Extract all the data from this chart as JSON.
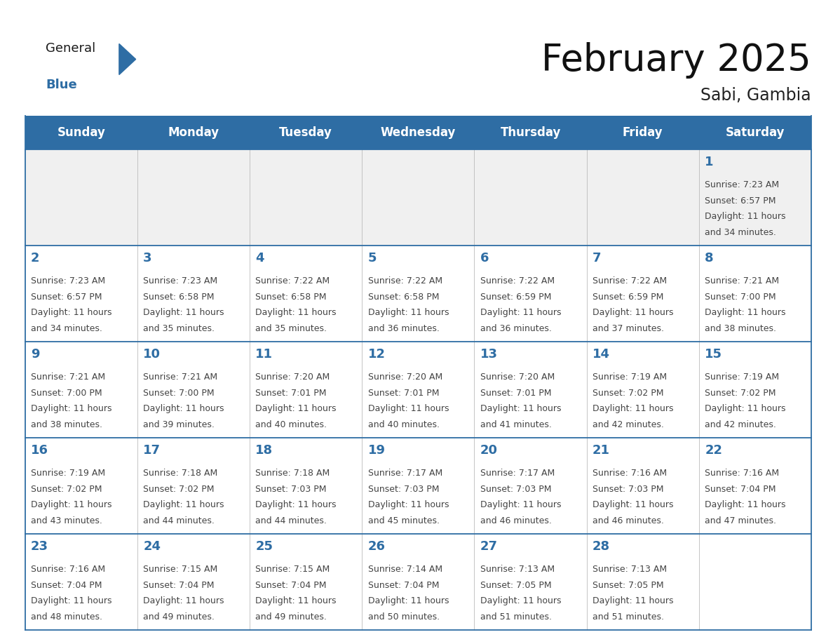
{
  "title": "February 2025",
  "location": "Sabi, Gambia",
  "header_bg": "#2E6DA4",
  "header_text": "#FFFFFF",
  "cell_bg": "#FFFFFF",
  "day_number_color": "#2E6DA4",
  "cell_text_color": "#444444",
  "border_color": "#2E6DA4",
  "row_sep_color": "#2E6DA4",
  "col_sep_color": "#BBBBBB",
  "days_of_week": [
    "Sunday",
    "Monday",
    "Tuesday",
    "Wednesday",
    "Thursday",
    "Friday",
    "Saturday"
  ],
  "weeks": [
    [
      {
        "day": null,
        "sunrise": null,
        "sunset": null,
        "daylight_line1": null,
        "daylight_line2": null
      },
      {
        "day": null,
        "sunrise": null,
        "sunset": null,
        "daylight_line1": null,
        "daylight_line2": null
      },
      {
        "day": null,
        "sunrise": null,
        "sunset": null,
        "daylight_line1": null,
        "daylight_line2": null
      },
      {
        "day": null,
        "sunrise": null,
        "sunset": null,
        "daylight_line1": null,
        "daylight_line2": null
      },
      {
        "day": null,
        "sunrise": null,
        "sunset": null,
        "daylight_line1": null,
        "daylight_line2": null
      },
      {
        "day": null,
        "sunrise": null,
        "sunset": null,
        "daylight_line1": null,
        "daylight_line2": null
      },
      {
        "day": 1,
        "sunrise": "7:23 AM",
        "sunset": "6:57 PM",
        "daylight_line1": "Daylight: 11 hours",
        "daylight_line2": "and 34 minutes."
      }
    ],
    [
      {
        "day": 2,
        "sunrise": "7:23 AM",
        "sunset": "6:57 PM",
        "daylight_line1": "Daylight: 11 hours",
        "daylight_line2": "and 34 minutes."
      },
      {
        "day": 3,
        "sunrise": "7:23 AM",
        "sunset": "6:58 PM",
        "daylight_line1": "Daylight: 11 hours",
        "daylight_line2": "and 35 minutes."
      },
      {
        "day": 4,
        "sunrise": "7:22 AM",
        "sunset": "6:58 PM",
        "daylight_line1": "Daylight: 11 hours",
        "daylight_line2": "and 35 minutes."
      },
      {
        "day": 5,
        "sunrise": "7:22 AM",
        "sunset": "6:58 PM",
        "daylight_line1": "Daylight: 11 hours",
        "daylight_line2": "and 36 minutes."
      },
      {
        "day": 6,
        "sunrise": "7:22 AM",
        "sunset": "6:59 PM",
        "daylight_line1": "Daylight: 11 hours",
        "daylight_line2": "and 36 minutes."
      },
      {
        "day": 7,
        "sunrise": "7:22 AM",
        "sunset": "6:59 PM",
        "daylight_line1": "Daylight: 11 hours",
        "daylight_line2": "and 37 minutes."
      },
      {
        "day": 8,
        "sunrise": "7:21 AM",
        "sunset": "7:00 PM",
        "daylight_line1": "Daylight: 11 hours",
        "daylight_line2": "and 38 minutes."
      }
    ],
    [
      {
        "day": 9,
        "sunrise": "7:21 AM",
        "sunset": "7:00 PM",
        "daylight_line1": "Daylight: 11 hours",
        "daylight_line2": "and 38 minutes."
      },
      {
        "day": 10,
        "sunrise": "7:21 AM",
        "sunset": "7:00 PM",
        "daylight_line1": "Daylight: 11 hours",
        "daylight_line2": "and 39 minutes."
      },
      {
        "day": 11,
        "sunrise": "7:20 AM",
        "sunset": "7:01 PM",
        "daylight_line1": "Daylight: 11 hours",
        "daylight_line2": "and 40 minutes."
      },
      {
        "day": 12,
        "sunrise": "7:20 AM",
        "sunset": "7:01 PM",
        "daylight_line1": "Daylight: 11 hours",
        "daylight_line2": "and 40 minutes."
      },
      {
        "day": 13,
        "sunrise": "7:20 AM",
        "sunset": "7:01 PM",
        "daylight_line1": "Daylight: 11 hours",
        "daylight_line2": "and 41 minutes."
      },
      {
        "day": 14,
        "sunrise": "7:19 AM",
        "sunset": "7:02 PM",
        "daylight_line1": "Daylight: 11 hours",
        "daylight_line2": "and 42 minutes."
      },
      {
        "day": 15,
        "sunrise": "7:19 AM",
        "sunset": "7:02 PM",
        "daylight_line1": "Daylight: 11 hours",
        "daylight_line2": "and 42 minutes."
      }
    ],
    [
      {
        "day": 16,
        "sunrise": "7:19 AM",
        "sunset": "7:02 PM",
        "daylight_line1": "Daylight: 11 hours",
        "daylight_line2": "and 43 minutes."
      },
      {
        "day": 17,
        "sunrise": "7:18 AM",
        "sunset": "7:02 PM",
        "daylight_line1": "Daylight: 11 hours",
        "daylight_line2": "and 44 minutes."
      },
      {
        "day": 18,
        "sunrise": "7:18 AM",
        "sunset": "7:03 PM",
        "daylight_line1": "Daylight: 11 hours",
        "daylight_line2": "and 44 minutes."
      },
      {
        "day": 19,
        "sunrise": "7:17 AM",
        "sunset": "7:03 PM",
        "daylight_line1": "Daylight: 11 hours",
        "daylight_line2": "and 45 minutes."
      },
      {
        "day": 20,
        "sunrise": "7:17 AM",
        "sunset": "7:03 PM",
        "daylight_line1": "Daylight: 11 hours",
        "daylight_line2": "and 46 minutes."
      },
      {
        "day": 21,
        "sunrise": "7:16 AM",
        "sunset": "7:03 PM",
        "daylight_line1": "Daylight: 11 hours",
        "daylight_line2": "and 46 minutes."
      },
      {
        "day": 22,
        "sunrise": "7:16 AM",
        "sunset": "7:04 PM",
        "daylight_line1": "Daylight: 11 hours",
        "daylight_line2": "and 47 minutes."
      }
    ],
    [
      {
        "day": 23,
        "sunrise": "7:16 AM",
        "sunset": "7:04 PM",
        "daylight_line1": "Daylight: 11 hours",
        "daylight_line2": "and 48 minutes."
      },
      {
        "day": 24,
        "sunrise": "7:15 AM",
        "sunset": "7:04 PM",
        "daylight_line1": "Daylight: 11 hours",
        "daylight_line2": "and 49 minutes."
      },
      {
        "day": 25,
        "sunrise": "7:15 AM",
        "sunset": "7:04 PM",
        "daylight_line1": "Daylight: 11 hours",
        "daylight_line2": "and 49 minutes."
      },
      {
        "day": 26,
        "sunrise": "7:14 AM",
        "sunset": "7:04 PM",
        "daylight_line1": "Daylight: 11 hours",
        "daylight_line2": "and 50 minutes."
      },
      {
        "day": 27,
        "sunrise": "7:13 AM",
        "sunset": "7:05 PM",
        "daylight_line1": "Daylight: 11 hours",
        "daylight_line2": "and 51 minutes."
      },
      {
        "day": 28,
        "sunrise": "7:13 AM",
        "sunset": "7:05 PM",
        "daylight_line1": "Daylight: 11 hours",
        "daylight_line2": "and 51 minutes."
      },
      {
        "day": null,
        "sunrise": null,
        "sunset": null,
        "daylight_line1": null,
        "daylight_line2": null
      }
    ]
  ],
  "logo_general_color": "#1a1a1a",
  "logo_blue_color": "#2E6DA4",
  "logo_triangle_color": "#2E6DA4",
  "title_fontsize": 38,
  "subtitle_fontsize": 17,
  "header_fontsize": 12,
  "day_num_fontsize": 13,
  "cell_text_fontsize": 9
}
